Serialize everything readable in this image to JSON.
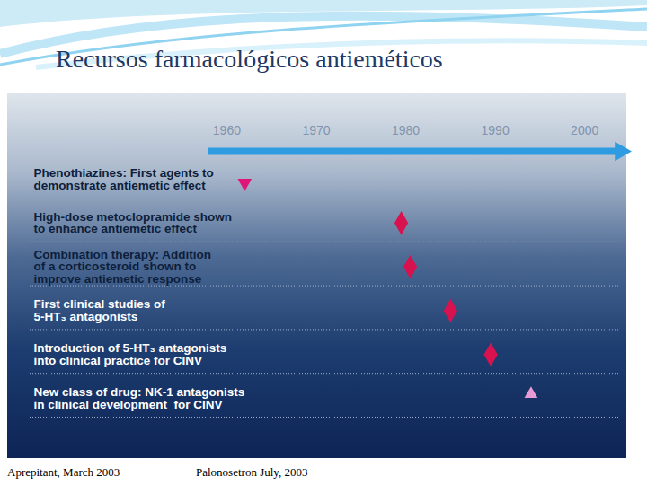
{
  "chart_data": {
    "type": "timeline",
    "title": "Recursos farmacológicos antieméticos",
    "categories": [
      "Phenothiazines: First agents to\ndemonstrate antiemetic effect",
      "High-dose metoclopramide shown\nto enhance antiemetic effect",
      "Combination therapy: Addition\nof a corticosteroid shown to\nimprove antiemetic response",
      "First clinical studies of\n5-HT₃ antagonists",
      "Introduction of 5-HT₃ antagonists\ninto clinical practice for CINV",
      "New class of drug: NK-1 antagonists\nin clinical development  for CINV"
    ],
    "values": [
      1962,
      1979.5,
      1980.5,
      1985,
      1989.5,
      1994
    ],
    "colors": [
      "#e0157a",
      "#d8124f",
      "#d8124f",
      "#d8124f",
      "#d8124f",
      "#e89ad6"
    ],
    "marker": "diamond",
    "xlim": [
      1958,
      2004
    ],
    "xticks": [
      1960,
      1970,
      1980,
      1990,
      2000
    ],
    "tick_labels": "x",
    "annotations": [
      "Aprepitant, March 2003",
      "Palonosetron July, 2003"
    ]
  }
}
